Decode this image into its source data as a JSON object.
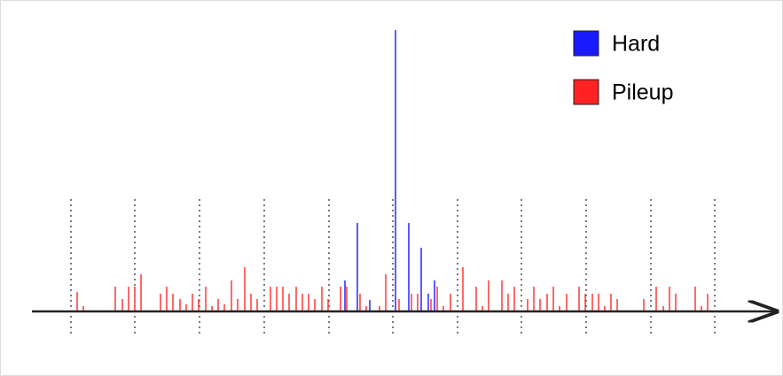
{
  "chart_data": {
    "type": "spike",
    "xlim": [
      0,
      883
    ],
    "ylim": [
      0,
      318
    ],
    "xticks": [
      80,
      152,
      225,
      298,
      371,
      443,
      516,
      588,
      661,
      734,
      806
    ],
    "grid": true,
    "legend": "top-right",
    "series": [
      {
        "name": "Hard",
        "color": "#3333ff",
        "x": [
          389,
          403,
          417,
          446,
          461,
          475,
          483,
          490
        ],
        "values": [
          35,
          100,
          13,
          318,
          100,
          72,
          20,
          35
        ]
      },
      {
        "name": "Pileup",
        "color": "#ff4444",
        "x": [
          87,
          94,
          130,
          138,
          145,
          152,
          159,
          181,
          188,
          195,
          203,
          210,
          217,
          224,
          232,
          239,
          246,
          253,
          261,
          268,
          276,
          283,
          290,
          305,
          312,
          319,
          326,
          334,
          341,
          348,
          355,
          363,
          370,
          384,
          391,
          406,
          413,
          428,
          435,
          450,
          464,
          471,
          486,
          493,
          500,
          508,
          522,
          537,
          544,
          551,
          566,
          573,
          580,
          595,
          602,
          609,
          617,
          624,
          631,
          639,
          653,
          660,
          668,
          675,
          682,
          689,
          696,
          726,
          740,
          748,
          755,
          762,
          784,
          791,
          798
        ],
        "values": [
          22,
          6,
          28,
          14,
          28,
          28,
          42,
          20,
          28,
          20,
          14,
          8,
          20,
          14,
          28,
          6,
          14,
          8,
          35,
          14,
          50,
          20,
          14,
          28,
          28,
          28,
          20,
          28,
          20,
          20,
          14,
          28,
          14,
          28,
          28,
          20,
          6,
          6,
          42,
          14,
          20,
          20,
          14,
          28,
          6,
          20,
          50,
          28,
          6,
          35,
          35,
          20,
          28,
          14,
          28,
          14,
          20,
          28,
          6,
          20,
          28,
          20,
          20,
          20,
          6,
          20,
          14,
          14,
          28,
          6,
          28,
          20,
          28,
          6,
          20
        ]
      }
    ]
  }
}
